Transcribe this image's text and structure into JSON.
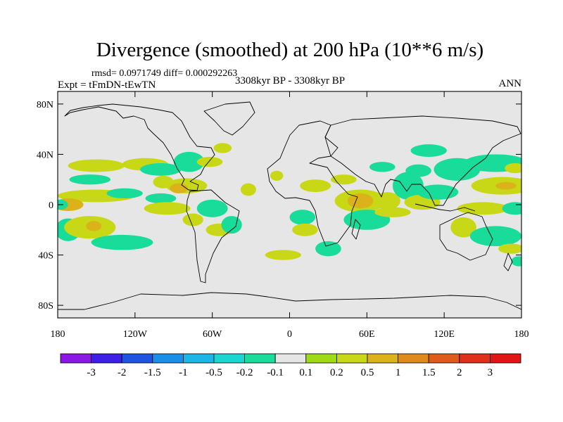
{
  "chart_data": {
    "type": "heatmap",
    "title": "Divergence (smoothed) at 200 hPa (10**6 m/s)",
    "stats": "rmsd= 0.0971749 diff= 0.000292263",
    "experiment": "Expt = tFmDN-tEwTN",
    "period": "3308kyr BP - 3308kyr BP",
    "season": "ANN",
    "projection": "cylindrical equidistant, lon -180..180, lat -90..90",
    "x_range": [
      -180,
      180
    ],
    "y_range": [
      -90,
      90
    ],
    "x_ticks": [
      {
        "value": -180,
        "label": "180"
      },
      {
        "value": -120,
        "label": "120W"
      },
      {
        "value": -60,
        "label": "60W"
      },
      {
        "value": 0,
        "label": "0"
      },
      {
        "value": 60,
        "label": "60E"
      },
      {
        "value": 120,
        "label": "120E"
      },
      {
        "value": 180,
        "label": "180"
      }
    ],
    "y_ticks": [
      {
        "value": 80,
        "label": "80N"
      },
      {
        "value": 40,
        "label": "40N"
      },
      {
        "value": 0,
        "label": "0"
      },
      {
        "value": -40,
        "label": "40S"
      },
      {
        "value": -80,
        "label": "80S"
      }
    ],
    "colorbar": {
      "labels": [
        "-3",
        "-2",
        "-1.5",
        "-1",
        "-0.5",
        "-0.2",
        "-0.1",
        "0.1",
        "0.2",
        "0.5",
        "1",
        "1.5",
        "2",
        "3"
      ],
      "colors": [
        "#8c18e6",
        "#3d1fe8",
        "#1e55e0",
        "#1a8fe8",
        "#19b6e6",
        "#19d6d0",
        "#1adc9a",
        "#e6e6e6",
        "#9edb14",
        "#c8d816",
        "#dcb21a",
        "#de8a1c",
        "#e05a1a",
        "#e0301c",
        "#e01616"
      ]
    },
    "anomalies": [
      {
        "lon": -150,
        "lat": 31,
        "rx": 22,
        "ry": 5,
        "value": 0.2
      },
      {
        "lon": -155,
        "lat": 20,
        "rx": 16,
        "ry": 4,
        "value": -0.2
      },
      {
        "lon": -150,
        "lat": 7,
        "rx": 30,
        "ry": 5,
        "value": 0.2
      },
      {
        "lon": -172,
        "lat": 0,
        "rx": 12,
        "ry": 5,
        "value": 0.5
      },
      {
        "lon": -178,
        "lat": 0,
        "rx": 6,
        "ry": 4,
        "value": -0.2
      },
      {
        "lon": -172,
        "lat": -20,
        "rx": 10,
        "ry": 9,
        "value": -0.2
      },
      {
        "lon": -155,
        "lat": -18,
        "rx": 20,
        "ry": 9,
        "value": 0.2
      },
      {
        "lon": -152,
        "lat": -17,
        "rx": 6,
        "ry": 4,
        "value": 0.5
      },
      {
        "lon": -130,
        "lat": -30,
        "rx": 24,
        "ry": 6,
        "value": -0.2
      },
      {
        "lon": -128,
        "lat": 9,
        "rx": 14,
        "ry": 4,
        "value": -0.2
      },
      {
        "lon": -112,
        "lat": 32,
        "rx": 18,
        "ry": 5,
        "value": 0.2
      },
      {
        "lon": -100,
        "lat": 28,
        "rx": 16,
        "ry": 5,
        "value": -0.2
      },
      {
        "lon": -98,
        "lat": 18,
        "rx": 8,
        "ry": 5,
        "value": 0.2
      },
      {
        "lon": -78,
        "lat": 34,
        "rx": 12,
        "ry": 8,
        "value": -0.2
      },
      {
        "lon": -80,
        "lat": 15,
        "rx": 16,
        "ry": 6,
        "value": 0.2
      },
      {
        "lon": -86,
        "lat": 13,
        "rx": 7,
        "ry": 4,
        "value": 0.5
      },
      {
        "lon": -62,
        "lat": 34,
        "rx": 10,
        "ry": 4,
        "value": 0.2
      },
      {
        "lon": -52,
        "lat": 45,
        "rx": 7,
        "ry": 4,
        "value": 0.2
      },
      {
        "lon": -100,
        "lat": 5,
        "rx": 12,
        "ry": 4,
        "value": -0.2
      },
      {
        "lon": -95,
        "lat": -3,
        "rx": 18,
        "ry": 5,
        "value": 0.2
      },
      {
        "lon": -60,
        "lat": -3,
        "rx": 12,
        "ry": 7,
        "value": -0.2
      },
      {
        "lon": -75,
        "lat": -12,
        "rx": 8,
        "ry": 5,
        "value": 0.2
      },
      {
        "lon": -55,
        "lat": -20,
        "rx": 10,
        "ry": 5,
        "value": 0.2
      },
      {
        "lon": -45,
        "lat": -16,
        "rx": 8,
        "ry": 7,
        "value": -0.2
      },
      {
        "lon": -32,
        "lat": 12,
        "rx": 6,
        "ry": 5,
        "value": 0.2
      },
      {
        "lon": -10,
        "lat": 23,
        "rx": 5,
        "ry": 4,
        "value": 0.2
      },
      {
        "lon": 20,
        "lat": 15,
        "rx": 12,
        "ry": 5,
        "value": 0.2
      },
      {
        "lon": 10,
        "lat": -10,
        "rx": 10,
        "ry": 6,
        "value": -0.2
      },
      {
        "lon": 12,
        "lat": -20,
        "rx": 10,
        "ry": 5,
        "value": 0.2
      },
      {
        "lon": -5,
        "lat": -40,
        "rx": 14,
        "ry": 4,
        "value": 0.2
      },
      {
        "lon": 30,
        "lat": -35,
        "rx": 10,
        "ry": 6,
        "value": -0.2
      },
      {
        "lon": 42,
        "lat": 20,
        "rx": 10,
        "ry": 4,
        "value": 0.2
      },
      {
        "lon": 55,
        "lat": 3,
        "rx": 20,
        "ry": 9,
        "value": 0.2
      },
      {
        "lon": 55,
        "lat": 3,
        "rx": 10,
        "ry": 6,
        "value": 0.5
      },
      {
        "lon": 60,
        "lat": -12,
        "rx": 18,
        "ry": 8,
        "value": -0.2
      },
      {
        "lon": 76,
        "lat": 3,
        "rx": 10,
        "ry": 7,
        "value": 0.2
      },
      {
        "lon": 80,
        "lat": -6,
        "rx": 14,
        "ry": 4,
        "value": 0.2
      },
      {
        "lon": 72,
        "lat": 30,
        "rx": 10,
        "ry": 4,
        "value": -0.2
      },
      {
        "lon": 100,
        "lat": 27,
        "rx": 10,
        "ry": 5,
        "value": -0.2
      },
      {
        "lon": 108,
        "lat": 43,
        "rx": 14,
        "ry": 5,
        "value": -0.2
      },
      {
        "lon": 92,
        "lat": 15,
        "rx": 12,
        "ry": 11,
        "value": -0.2
      },
      {
        "lon": 103,
        "lat": 2,
        "rx": 14,
        "ry": 6,
        "value": 0.2
      },
      {
        "lon": 115,
        "lat": 10,
        "rx": 16,
        "ry": 6,
        "value": -0.2
      },
      {
        "lon": 130,
        "lat": 28,
        "rx": 18,
        "ry": 9,
        "value": -0.2
      },
      {
        "lon": 160,
        "lat": 33,
        "rx": 25,
        "ry": 7,
        "value": -0.2
      },
      {
        "lon": 165,
        "lat": 15,
        "rx": 24,
        "ry": 7,
        "value": 0.2
      },
      {
        "lon": 168,
        "lat": 15,
        "rx": 8,
        "ry": 3,
        "value": 0.5
      },
      {
        "lon": 175,
        "lat": 29,
        "rx": 8,
        "ry": 4,
        "value": 0.2
      },
      {
        "lon": 150,
        "lat": -3,
        "rx": 20,
        "ry": 5,
        "value": 0.2
      },
      {
        "lon": 175,
        "lat": -3,
        "rx": 10,
        "ry": 5,
        "value": -0.2
      },
      {
        "lon": 135,
        "lat": -18,
        "rx": 10,
        "ry": 8,
        "value": 0.2
      },
      {
        "lon": 160,
        "lat": -25,
        "rx": 20,
        "ry": 8,
        "value": -0.2
      },
      {
        "lon": 172,
        "lat": -35,
        "rx": 10,
        "ry": 4,
        "value": 0.2
      },
      {
        "lon": 178,
        "lat": -45,
        "rx": 6,
        "ry": 4,
        "value": -0.2
      }
    ]
  }
}
